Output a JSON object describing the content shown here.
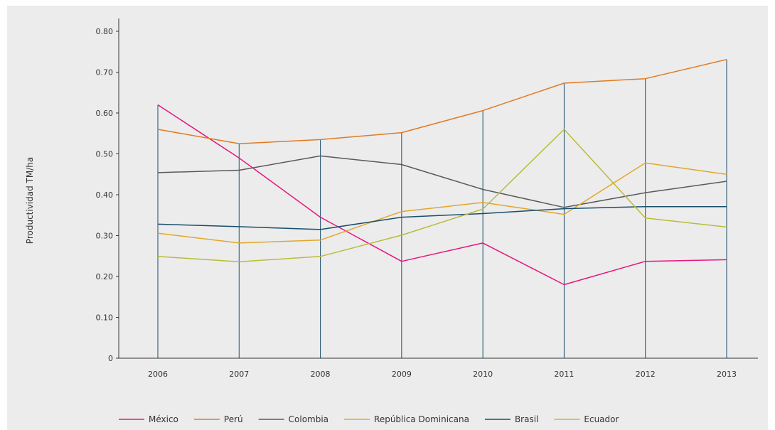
{
  "chart_data": {
    "type": "line",
    "title": "",
    "xlabel": "",
    "ylabel": "Productividad TM/ha",
    "x": [
      "2006",
      "2007",
      "2008",
      "2009",
      "2010",
      "2011",
      "2012",
      "2013"
    ],
    "ylim": [
      0,
      0.8
    ],
    "yticks": [
      "0",
      "0.10",
      "0.20",
      "0.30",
      "0.40",
      "0.50",
      "0.60",
      "0.70",
      "0.80"
    ],
    "vertical_gridlines": true,
    "legend_position": "bottom",
    "series": [
      {
        "name": "México",
        "color": "#e5157f",
        "values": [
          0.62,
          0.49,
          0.345,
          0.237,
          0.282,
          0.18,
          0.237,
          0.241
        ]
      },
      {
        "name": "Perú",
        "color": "#e07b22",
        "values": [
          0.56,
          0.525,
          0.535,
          0.552,
          0.606,
          0.673,
          0.684,
          0.731
        ]
      },
      {
        "name": "Colombia",
        "color": "#5a5a5a",
        "values": [
          0.454,
          0.46,
          0.495,
          0.474,
          0.413,
          0.369,
          0.405,
          0.433
        ]
      },
      {
        "name": "República Dominicana",
        "color": "#e2a72a",
        "values": [
          0.306,
          0.282,
          0.289,
          0.359,
          0.381,
          0.352,
          0.478,
          0.45
        ]
      },
      {
        "name": "Brasil",
        "color": "#1a4d6d",
        "values": [
          0.328,
          0.322,
          0.315,
          0.345,
          0.354,
          0.366,
          0.371,
          0.371
        ]
      },
      {
        "name": "Ecuador",
        "color": "#b8bc3a",
        "values": [
          0.249,
          0.236,
          0.249,
          0.301,
          0.365,
          0.56,
          0.343,
          0.321
        ]
      }
    ]
  }
}
